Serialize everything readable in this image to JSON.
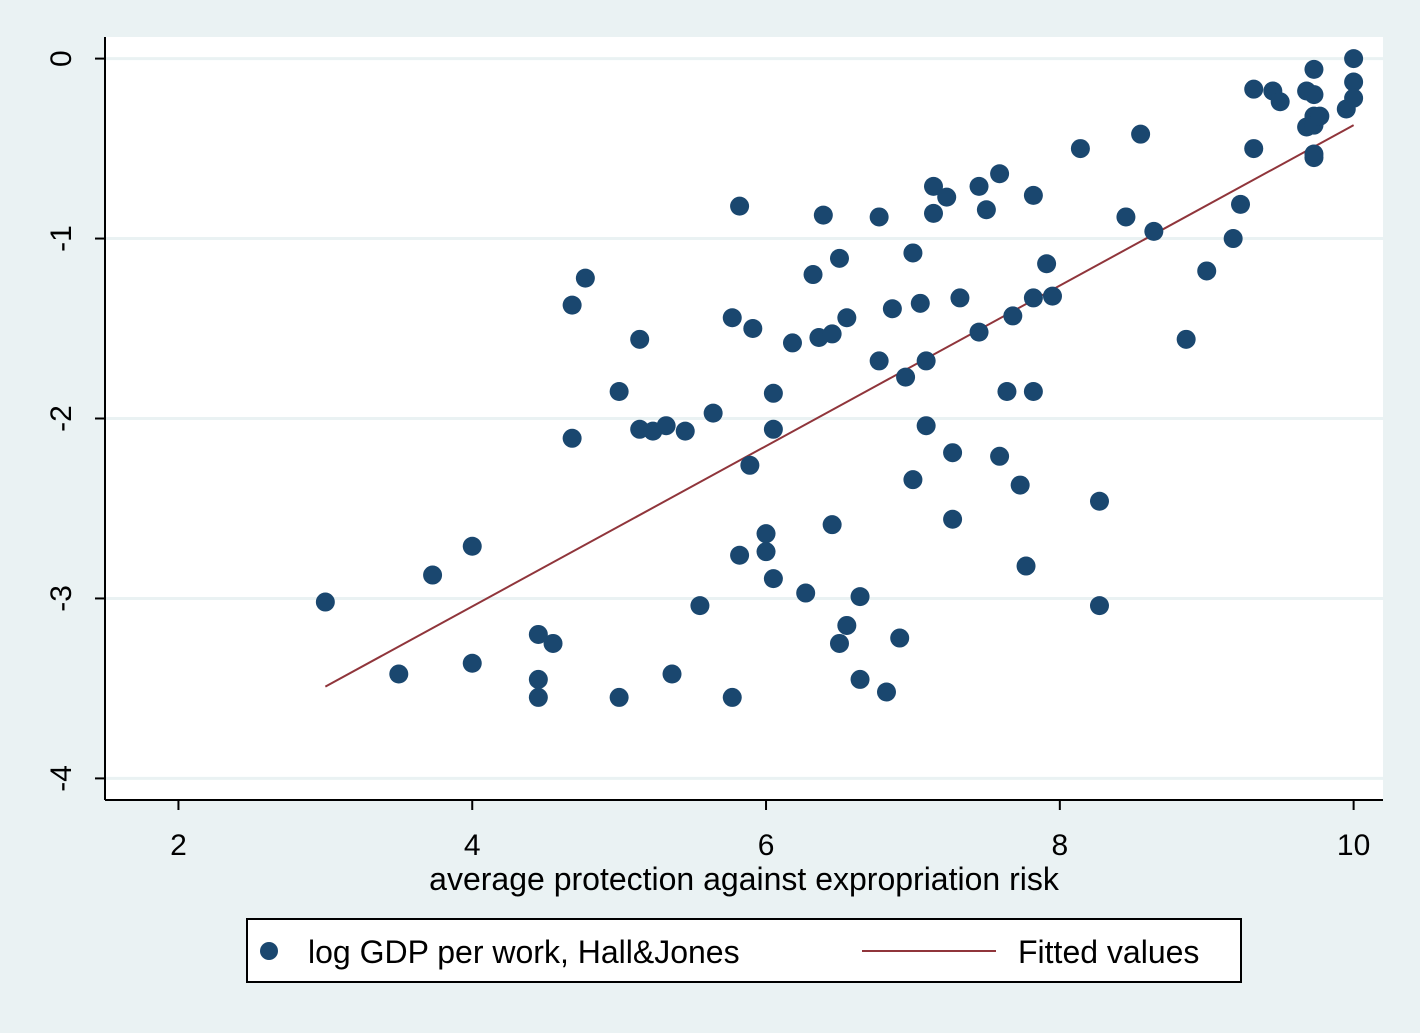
{
  "chart_data": {
    "type": "scatter",
    "xlabel": "average protection against expropriation risk",
    "ylabel": "",
    "xlim": [
      1.5,
      10.2
    ],
    "ylim": [
      -4.12,
      0.12
    ],
    "xticks": [
      2,
      4,
      6,
      8,
      10
    ],
    "yticks": [
      0,
      -1,
      -2,
      -3,
      -4
    ],
    "grid": true,
    "legend_position": "bottom",
    "colors": {
      "background": "#eaf2f3",
      "plot_background": "#ffffff",
      "grid": "#eaf2f3",
      "markers": "#1a476f",
      "fit_line": "#90353b"
    },
    "series": [
      {
        "name": "log GDP per work, Hall&Jones",
        "kind": "scatter",
        "points": [
          [
            3.0,
            -3.02
          ],
          [
            3.5,
            -3.42
          ],
          [
            3.73,
            -2.87
          ],
          [
            4.0,
            -2.71
          ],
          [
            4.0,
            -3.36
          ],
          [
            4.45,
            -3.2
          ],
          [
            4.45,
            -3.45
          ],
          [
            4.45,
            -3.55
          ],
          [
            4.55,
            -3.25
          ],
          [
            4.68,
            -1.37
          ],
          [
            4.68,
            -2.11
          ],
          [
            4.77,
            -1.22
          ],
          [
            5.0,
            -1.85
          ],
          [
            5.0,
            -3.55
          ],
          [
            5.14,
            -1.56
          ],
          [
            5.14,
            -2.06
          ],
          [
            5.23,
            -2.07
          ],
          [
            5.32,
            -2.04
          ],
          [
            5.36,
            -3.42
          ],
          [
            5.45,
            -2.07
          ],
          [
            5.55,
            -3.04
          ],
          [
            5.64,
            -1.97
          ],
          [
            5.77,
            -1.44
          ],
          [
            5.77,
            -3.55
          ],
          [
            5.82,
            -0.82
          ],
          [
            5.82,
            -2.76
          ],
          [
            5.91,
            -1.5
          ],
          [
            5.89,
            -2.26
          ],
          [
            6.0,
            -2.64
          ],
          [
            6.0,
            -2.74
          ],
          [
            6.05,
            -1.86
          ],
          [
            6.05,
            -2.06
          ],
          [
            6.05,
            -2.89
          ],
          [
            6.18,
            -1.58
          ],
          [
            6.27,
            -2.97
          ],
          [
            6.32,
            -1.2
          ],
          [
            6.36,
            -1.55
          ],
          [
            6.39,
            -0.87
          ],
          [
            6.45,
            -1.53
          ],
          [
            6.45,
            -2.59
          ],
          [
            6.5,
            -1.11
          ],
          [
            6.5,
            -3.25
          ],
          [
            6.55,
            -1.44
          ],
          [
            6.55,
            -3.15
          ],
          [
            6.64,
            -2.99
          ],
          [
            6.64,
            -3.45
          ],
          [
            6.77,
            -0.88
          ],
          [
            6.77,
            -1.68
          ],
          [
            6.82,
            -3.52
          ],
          [
            6.86,
            -1.39
          ],
          [
            6.91,
            -3.22
          ],
          [
            6.95,
            -1.77
          ],
          [
            7.0,
            -1.08
          ],
          [
            7.0,
            -2.34
          ],
          [
            7.05,
            -1.36
          ],
          [
            7.09,
            -1.68
          ],
          [
            7.09,
            -2.04
          ],
          [
            7.14,
            -0.71
          ],
          [
            7.14,
            -0.86
          ],
          [
            7.23,
            -0.77
          ],
          [
            7.27,
            -2.19
          ],
          [
            7.27,
            -2.56
          ],
          [
            7.32,
            -1.33
          ],
          [
            7.45,
            -0.71
          ],
          [
            7.45,
            -1.52
          ],
          [
            7.5,
            -0.84
          ],
          [
            7.59,
            -0.64
          ],
          [
            7.59,
            -2.21
          ],
          [
            7.64,
            -1.85
          ],
          [
            7.68,
            -1.43
          ],
          [
            7.73,
            -2.37
          ],
          [
            7.77,
            -2.82
          ],
          [
            7.82,
            -0.76
          ],
          [
            7.82,
            -1.33
          ],
          [
            7.82,
            -1.85
          ],
          [
            7.91,
            -1.14
          ],
          [
            7.95,
            -1.32
          ],
          [
            8.14,
            -0.5
          ],
          [
            8.27,
            -2.46
          ],
          [
            8.27,
            -3.04
          ],
          [
            8.45,
            -0.88
          ],
          [
            8.55,
            -0.42
          ],
          [
            8.64,
            -0.96
          ],
          [
            8.86,
            -1.56
          ],
          [
            9.0,
            -1.18
          ],
          [
            9.18,
            -1.0
          ],
          [
            9.23,
            -0.81
          ],
          [
            9.32,
            -0.17
          ],
          [
            9.32,
            -0.5
          ],
          [
            9.45,
            -0.18
          ],
          [
            9.5,
            -0.24
          ],
          [
            9.68,
            -0.18
          ],
          [
            9.68,
            -0.38
          ],
          [
            9.73,
            -0.06
          ],
          [
            9.73,
            -0.2
          ],
          [
            9.73,
            -0.32
          ],
          [
            9.73,
            -0.37
          ],
          [
            9.73,
            -0.53
          ],
          [
            9.73,
            -0.55
          ],
          [
            9.77,
            -0.32
          ],
          [
            9.95,
            -0.28
          ],
          [
            10.0,
            0.0
          ],
          [
            10.0,
            -0.13
          ],
          [
            10.0,
            -0.22
          ]
        ]
      },
      {
        "name": "Fitted values",
        "kind": "line",
        "points": [
          [
            3.0,
            -3.49
          ],
          [
            10.0,
            -0.37
          ]
        ]
      }
    ]
  }
}
